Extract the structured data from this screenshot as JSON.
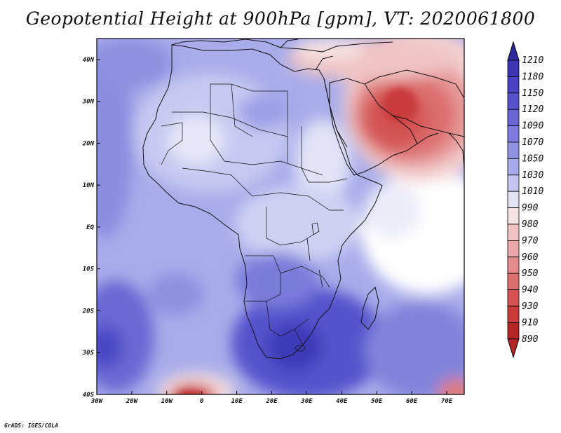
{
  "title": "Geopotential Height at 900hPa [gpm], VT: 2020061800",
  "credit": "GrADS: IGES/COLA",
  "map": {
    "lon_range": [
      -30,
      75
    ],
    "lat_range": [
      -40,
      45
    ],
    "x_ticks": [
      "30W",
      "20W",
      "10W",
      "0",
      "10E",
      "20E",
      "30E",
      "40E",
      "50E",
      "60E",
      "70E"
    ],
    "y_ticks": [
      "40N",
      "30N",
      "20N",
      "10N",
      "EQ",
      "10S",
      "20S",
      "30S",
      "40S"
    ]
  },
  "colorbar": {
    "levels": [
      "1210",
      "1180",
      "1150",
      "1120",
      "1090",
      "1070",
      "1050",
      "1030",
      "1010",
      "990",
      "980",
      "970",
      "960",
      "950",
      "940",
      "930",
      "910",
      "890"
    ],
    "colors": [
      "#2e2a9c",
      "#3a36b4",
      "#4743c4",
      "#5553cc",
      "#6766d4",
      "#7b7cdc",
      "#9193e2",
      "#a8abea",
      "#c4c6f1",
      "#e2e3f7",
      "#f6e2e2",
      "#f0c4c4",
      "#eaa8a8",
      "#e48c8c",
      "#dc6e6e",
      "#d45252",
      "#c93a3a",
      "#b52525"
    ]
  }
}
